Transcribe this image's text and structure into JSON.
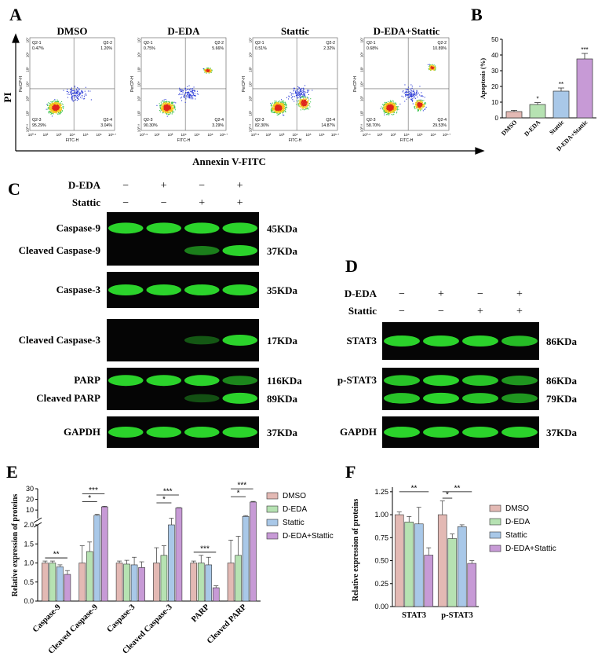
{
  "panels": {
    "A": "A",
    "B": "B",
    "C": "C",
    "D": "D",
    "E": "E",
    "F": "F"
  },
  "flow": {
    "plots": [
      {
        "title": "DMSO",
        "q1": "0.47%",
        "q2": "1.20%",
        "q3": "95.29%",
        "q4": "3.04%",
        "cluster": "low"
      },
      {
        "title": "D-EDA",
        "q1": "0.75%",
        "q2": "5.66%",
        "q3": "90.30%",
        "q4": "3.29%",
        "cluster": "upper"
      },
      {
        "title": "Stattic",
        "q1": "0.51%",
        "q2": "2.32%",
        "q3": "82.30%",
        "q4": "14.87%",
        "cluster": "spread"
      },
      {
        "title": "D-EDA+Stattic",
        "q1": "0.68%",
        "q2": "10.89%",
        "q3": "58.70%",
        "q4": "29.53%",
        "cluster": "both"
      }
    ],
    "quad_labels": {
      "q1": "Q2-1",
      "q2": "Q2-2",
      "q3": "Q2-3",
      "q4": "Q2-4"
    },
    "x_ticks": [
      "10⁰·⁹",
      "10²",
      "10³",
      "10⁴",
      "10⁵",
      "10⁶",
      "10⁶·⁷"
    ],
    "y_ticks": [
      "10⁰·⁹",
      "10²",
      "10³",
      "10⁴",
      "10⁵",
      "10⁶",
      "10⁷"
    ],
    "axis_x_small": "FITC-H",
    "axis_y_small": "PerCP-H",
    "y_arrow_label": "PI",
    "x_arrow_label": "Annexin V-FITC"
  },
  "chart_data": [
    {
      "type": "bar",
      "panel": "B",
      "categories": [
        "DMSO",
        "D-EDA",
        "Stattic",
        "D-EDA+Stattic"
      ],
      "values": [
        4,
        8.5,
        17,
        37.5
      ],
      "errors": [
        0.8,
        1.2,
        2,
        3.5
      ],
      "significance": [
        "",
        "*",
        "**",
        "***"
      ],
      "ylabel": "Apoptosis (%)",
      "ylim": [
        0,
        50
      ],
      "yticks": [
        0,
        10,
        20,
        30,
        40,
        50
      ],
      "colors": [
        "#e3b9b4",
        "#b6e2b2",
        "#a9c8e8",
        "#c79ad6"
      ]
    },
    {
      "type": "bar",
      "panel": "E",
      "categories": [
        "Caspase-9",
        "Cleaved Caspase-9",
        "Caspase-3",
        "Cleaved Caspase-3",
        "PARP",
        "Cleaved PARP"
      ],
      "series": [
        {
          "name": "DMSO",
          "values": [
            1.0,
            1.0,
            1.0,
            1.0,
            1.0,
            1.0
          ],
          "errors": [
            0.05,
            0.45,
            0.05,
            0.4,
            0.05,
            0.6
          ]
        },
        {
          "name": "D-EDA",
          "values": [
            1.0,
            1.3,
            0.97,
            1.2,
            1.0,
            1.2
          ],
          "errors": [
            0.05,
            0.25,
            0.1,
            0.25,
            0.2,
            0.5
          ]
        },
        {
          "name": "Stattic",
          "values": [
            0.9,
            5.0,
            0.95,
            2.0,
            0.95,
            4.0
          ],
          "errors": [
            0.05,
            1.0,
            0.2,
            0.3,
            0.2,
            0.8
          ]
        },
        {
          "name": "D-EDA+Stattic",
          "values": [
            0.7,
            13.0,
            0.88,
            12.0,
            0.35,
            17.5
          ],
          "errors": [
            0.1,
            0.5,
            0.15,
            0.3,
            0.05,
            0.6
          ]
        }
      ],
      "ylabel": "Relative expression of proteins",
      "yticks_lower": [
        "0.0",
        "0.5",
        "1.0",
        "1.5",
        "2.0"
      ],
      "yticks_upper": [
        "10",
        "20",
        "30"
      ],
      "axis_break": [
        2,
        2
      ],
      "significance": [
        {
          "group": 0,
          "from": 0,
          "to": 3,
          "text": "**"
        },
        {
          "group": 1,
          "from": 0,
          "to": 3,
          "text": "***"
        },
        {
          "group": 1,
          "from": 0,
          "to": 2,
          "text": "*"
        },
        {
          "group": 3,
          "from": 0,
          "to": 3,
          "text": "***"
        },
        {
          "group": 3,
          "from": 0,
          "to": 2,
          "text": "*"
        },
        {
          "group": 4,
          "from": 0,
          "to": 3,
          "text": "***"
        },
        {
          "group": 5,
          "from": 0,
          "to": 3,
          "text": "***"
        },
        {
          "group": 5,
          "from": 0,
          "to": 2,
          "text": "*"
        }
      ]
    },
    {
      "type": "bar",
      "panel": "F",
      "categories": [
        "STAT3",
        "p-STAT3"
      ],
      "series": [
        {
          "name": "DMSO",
          "values": [
            1.0,
            1.0
          ],
          "errors": [
            0.03,
            0.15
          ]
        },
        {
          "name": "D-EDA",
          "values": [
            0.92,
            0.74
          ],
          "errors": [
            0.06,
            0.05
          ]
        },
        {
          "name": "Stattic",
          "values": [
            0.9,
            0.87
          ],
          "errors": [
            0.18,
            0.02
          ]
        },
        {
          "name": "D-EDA+Stattic",
          "values": [
            0.56,
            0.47
          ],
          "errors": [
            0.08,
            0.03
          ]
        }
      ],
      "ylabel": "Relative expression of proteins",
      "ylim": [
        0,
        1.3
      ],
      "yticks": [
        "0.00",
        "0.25",
        "0.50",
        "0.75",
        "1.00",
        "1.25"
      ],
      "significance": [
        {
          "group": 0,
          "from": 0,
          "to": 3,
          "text": "**"
        },
        {
          "group": 1,
          "from": 0,
          "to": 1,
          "text": "*"
        },
        {
          "group": 1,
          "from": 0,
          "to": 3,
          "text": "**"
        }
      ]
    }
  ],
  "colors": {
    "dmso": "#e3b9b4",
    "deda": "#b6e2b2",
    "stattic": "#a9c8e8",
    "combo": "#c79ad6",
    "blot_bg": "#050505",
    "band": "#2bd32b"
  },
  "blotC": {
    "treat_rows": [
      {
        "label": "D-EDA",
        "signs": [
          "−",
          "+",
          "−",
          "+"
        ]
      },
      {
        "label": "Stattic",
        "signs": [
          "−",
          "−",
          "+",
          "+"
        ]
      }
    ],
    "strips": [
      {
        "labels": [
          "Caspase-9",
          "Cleaved Caspase-9"
        ],
        "sizes": [
          "45KDa",
          "37KDa"
        ],
        "bands": [
          [
            1,
            1,
            1,
            1
          ],
          [
            0,
            0,
            0.45,
            1
          ]
        ]
      },
      {
        "labels": [
          "Caspase-3"
        ],
        "sizes": [
          "35KDa"
        ],
        "bands": [
          [
            1,
            1,
            1,
            1
          ]
        ]
      },
      {
        "labels": [
          "Cleaved Caspase-3"
        ],
        "sizes": [
          "17KDa"
        ],
        "bands": [
          [
            0,
            0,
            0.2,
            1
          ]
        ]
      },
      {
        "labels": [
          "PARP",
          "Cleaved PARP"
        ],
        "sizes": [
          "116KDa",
          "89KDa"
        ],
        "bands": [
          [
            1,
            1,
            1,
            0.5
          ],
          [
            0,
            0,
            0.15,
            1
          ]
        ]
      },
      {
        "labels": [
          "GAPDH"
        ],
        "sizes": [
          "37KDa"
        ],
        "bands": [
          [
            1,
            1,
            1,
            1
          ]
        ]
      }
    ]
  },
  "blotD": {
    "treat_rows": [
      {
        "label": "D-EDA",
        "signs": [
          "−",
          "+",
          "−",
          "+"
        ]
      },
      {
        "label": "Stattic",
        "signs": [
          "−",
          "−",
          "+",
          "+"
        ]
      }
    ],
    "strips": [
      {
        "labels": [
          "STAT3"
        ],
        "sizes": [
          "86KDa"
        ],
        "bands": [
          [
            1,
            1,
            1,
            0.85
          ]
        ]
      },
      {
        "labels": [
          "p-STAT3"
        ],
        "sizes": [
          "86KDa",
          "79KDa"
        ],
        "bands": [
          [
            0.9,
            1,
            0.9,
            0.6
          ],
          [
            0.9,
            1,
            0.9,
            0.6
          ]
        ]
      },
      {
        "labels": [
          "GAPDH"
        ],
        "sizes": [
          "37KDa"
        ],
        "bands": [
          [
            1,
            1,
            1,
            1
          ]
        ]
      }
    ]
  }
}
